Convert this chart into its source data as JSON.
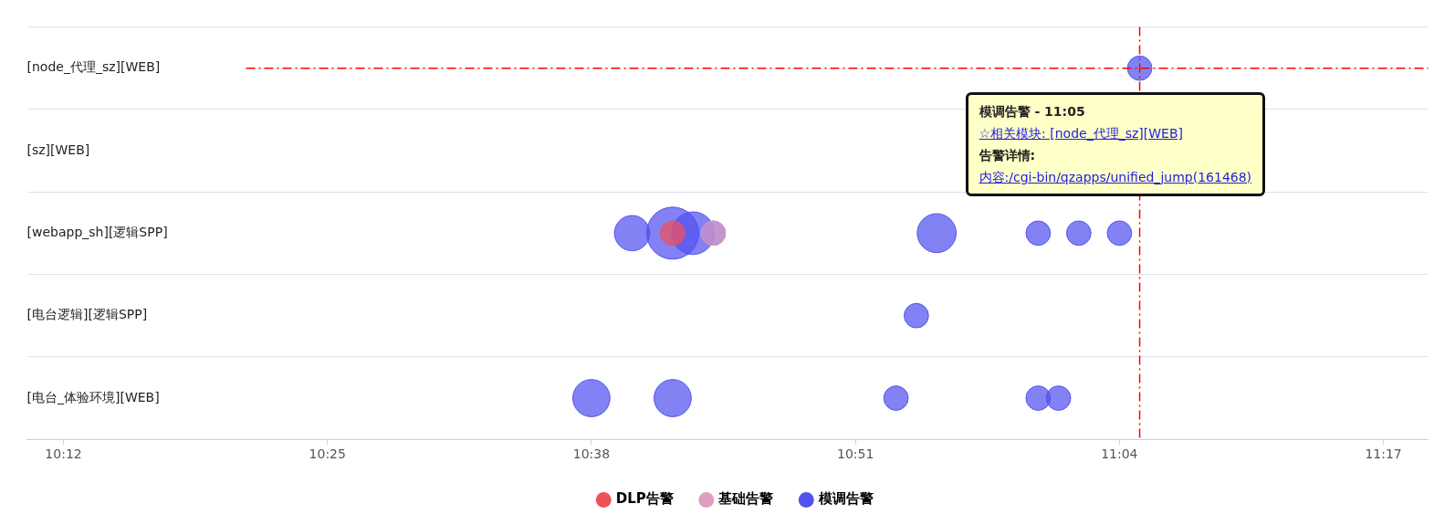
{
  "chart_data": {
    "type": "bubble",
    "orientation": "horizontal",
    "categories": [
      "[node_代理_sz][WEB]",
      "[sz][WEB]",
      "[webapp_sh][逻辑SPP]",
      "[电台逻辑][逻辑SPP]",
      "[电台_体验环境][WEB]"
    ],
    "series": [
      {
        "name": "DLP告警",
        "color": "#f0505a",
        "values": [
          null,
          null,
          10.7,
          null,
          null
        ],
        "sizes": [
          null,
          null,
          0.22,
          null,
          null
        ]
      },
      {
        "name": "基础告警",
        "color": "#dd9ec0",
        "values": [
          null,
          null,
          10.7333,
          null,
          null
        ],
        "sizes": [
          null,
          null,
          0.22,
          null,
          null
        ]
      },
      {
        "name": "模调告警",
        "color": "#5252f0",
        "values": [
          11.0833,
          null,
          10.6667,
          10.9,
          10.6333
        ],
        "sizes": [
          0.22,
          null,
          0.46,
          0.22,
          0.51
        ]
      },
      {
        "color": "#5252f0",
        "values": [
          null,
          null,
          10.7,
          null,
          10.7
        ],
        "sizes": [
          null,
          null,
          1,
          null,
          0.51
        ]
      },
      {
        "color": "#5252f0",
        "values": [
          null,
          null,
          10.7167,
          null,
          10.8833
        ],
        "sizes": [
          null,
          null,
          0.67,
          null,
          0.22
        ]
      },
      {
        "color": "#5252f0",
        "values": [
          null,
          null,
          10.7333,
          null,
          11.0
        ],
        "sizes": [
          null,
          null,
          0.22,
          null,
          0.22
        ]
      },
      {
        "color": "#5252f0",
        "values": [
          null,
          null,
          10.9167,
          null,
          11.0167
        ],
        "sizes": [
          null,
          null,
          0.56,
          null,
          0.22
        ]
      },
      {
        "color": "#5252f0",
        "values": [
          null,
          null,
          11.0,
          null,
          null
        ],
        "sizes": [
          null,
          null,
          0.22,
          null,
          null
        ]
      },
      {
        "color": "#5252f0",
        "values": [
          null,
          null,
          11.0333,
          null,
          null
        ],
        "sizes": [
          null,
          null,
          0.22,
          null,
          null
        ]
      },
      {
        "color": "#5252f0",
        "values": [
          null,
          null,
          11.0667,
          null,
          null
        ],
        "sizes": [
          null,
          null,
          0.22,
          null,
          null
        ]
      }
    ],
    "xlim": [
      10.17,
      11.32
    ],
    "xticks": [
      {
        "value": 10.2,
        "label": "10:12"
      },
      {
        "value": 10.416667,
        "label": "10:25"
      },
      {
        "value": 10.633333,
        "label": "10:38"
      },
      {
        "value": 10.85,
        "label": "10:51"
      },
      {
        "value": 11.066667,
        "label": "11:04"
      },
      {
        "value": 11.283333,
        "label": "11:17"
      }
    ],
    "grid": "y",
    "legend": "bottom",
    "marker": "circle",
    "ref_lines": [
      {
        "axis": "x",
        "value": 11.0833,
        "color": "#ff0000",
        "line_style": "dashed"
      },
      {
        "axis": "y",
        "value": "[node_代理_sz][WEB]",
        "color": "#ff0000",
        "line_style": "dashed"
      }
    ],
    "annotations": [
      "模调告警 - 11:05",
      "☆相关模块: [node_代理_sz][WEB]",
      "告警详情:",
      "内容:/cgi-bin/qzapps/unified_jump(161468)"
    ]
  }
}
